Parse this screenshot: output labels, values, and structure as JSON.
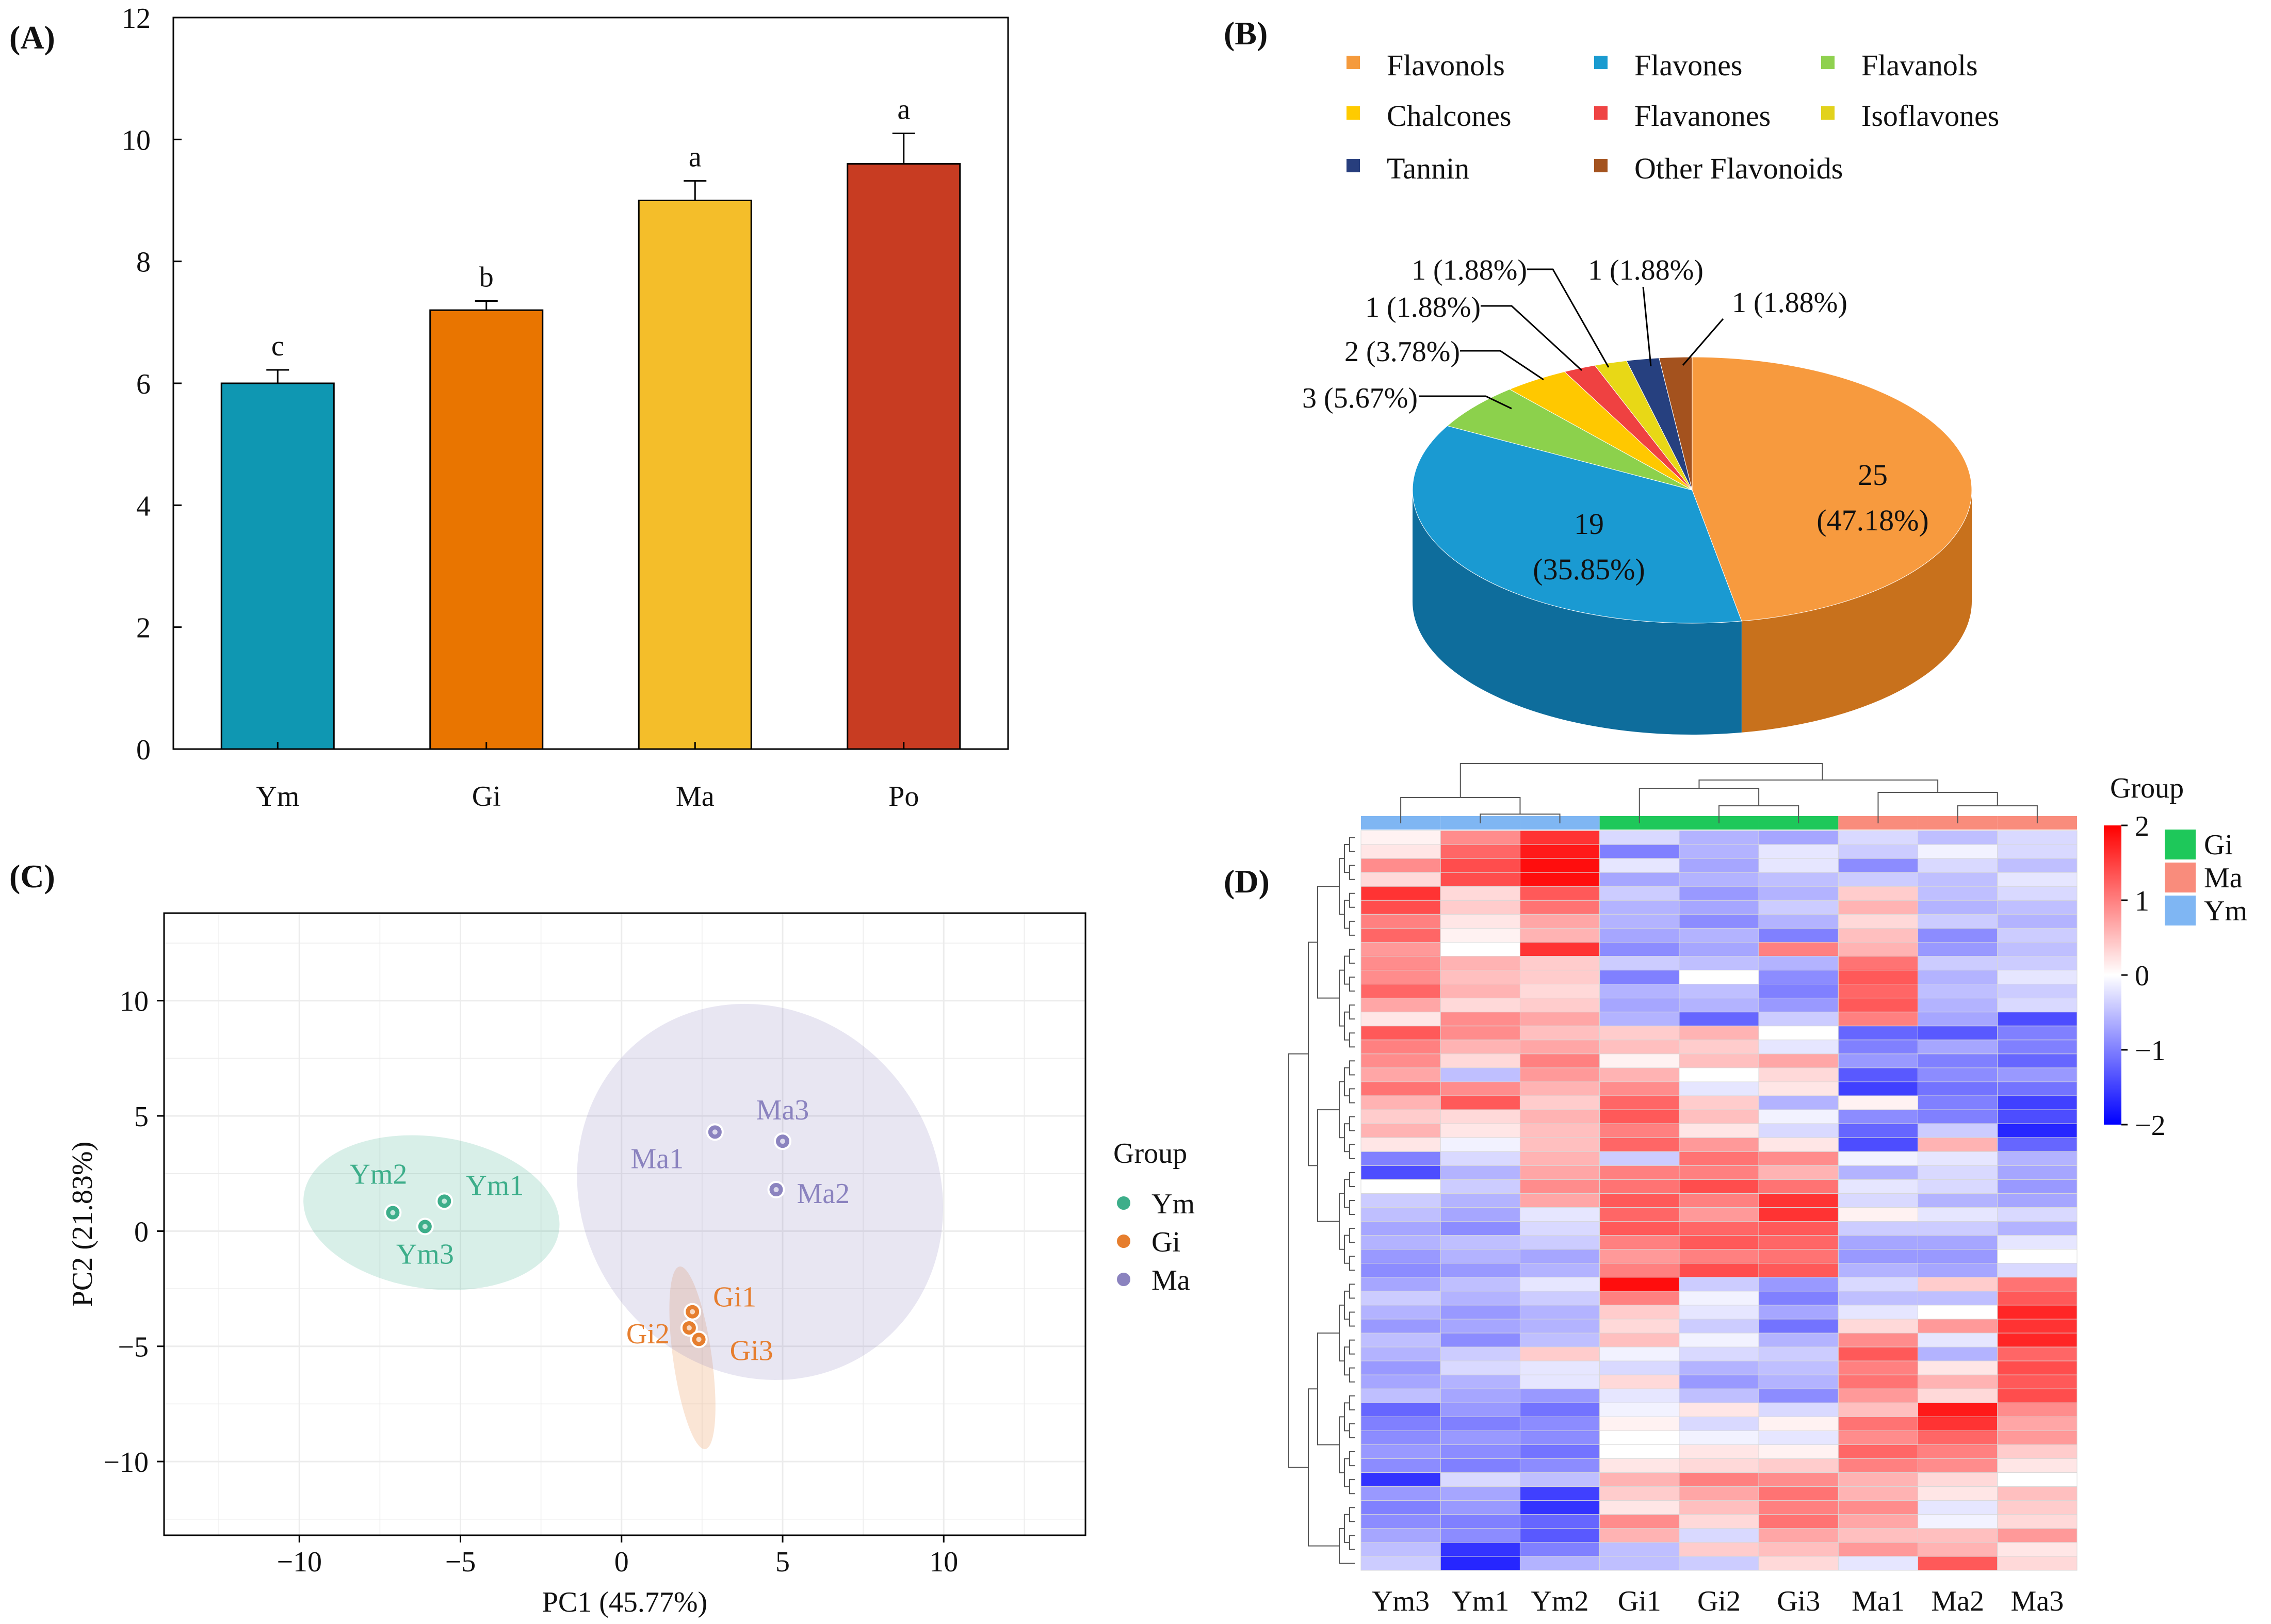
{
  "panels": {
    "a": "(A)",
    "b": "(B)",
    "c": "(C)",
    "d": "(D)"
  },
  "chart_data": [
    {
      "type": "bar",
      "panel": "A",
      "title": "",
      "xlabel": "",
      "ylabel": "",
      "categories": [
        "Ym",
        "Gi",
        "Ma",
        "Po"
      ],
      "values": [
        6.0,
        7.2,
        9.0,
        9.6
      ],
      "errors": [
        0.22,
        0.15,
        0.32,
        0.5
      ],
      "significance": [
        "c",
        "b",
        "a",
        "a"
      ],
      "colors": [
        "#0f97b2",
        "#e97500",
        "#f4be2a",
        "#c83c22"
      ],
      "ylim": [
        0,
        12
      ],
      "yticks": [
        0,
        2,
        4,
        6,
        8,
        10,
        12
      ]
    },
    {
      "type": "pie",
      "panel": "B",
      "style": "3d",
      "legend": [
        {
          "name": "Flavonols",
          "color": "#f59a3c"
        },
        {
          "name": "Flavones",
          "color": "#1a9bd0"
        },
        {
          "name": "Flavanols",
          "color": "#8fd14f"
        },
        {
          "name": "Chalcones",
          "color": "#ffcb00"
        },
        {
          "name": "Flavanones",
          "color": "#ef4444"
        },
        {
          "name": "Isoflavones",
          "color": "#e2d21c"
        },
        {
          "name": "Tannin",
          "color": "#273e7d"
        },
        {
          "name": "Other Flavonoids",
          "color": "#a4531f"
        }
      ],
      "slices": [
        {
          "name": "Flavonols",
          "value": 25,
          "line1": "25",
          "line2": "(47.18%)",
          "color": "#f79a3e",
          "side": "#c8711c"
        },
        {
          "name": "Flavones",
          "value": 19,
          "line1": "19",
          "line2": "(35.85%)",
          "color": "#1a9ad2",
          "side": "#0e6d9c"
        },
        {
          "name": "Flavanols",
          "value": 3,
          "label": "3 (5.67%)",
          "color": "#8cd14c",
          "side": "#5d9a2b"
        },
        {
          "name": "Chalcones",
          "value": 2,
          "label": "2 (3.78%)",
          "color": "#ffc800",
          "side": "#c59b00"
        },
        {
          "name": "Flavanones",
          "value": 1,
          "label": "1 (1.88%)",
          "color": "#ef4141",
          "side": "#b42a2a"
        },
        {
          "name": "Isoflavones",
          "value": 1,
          "label": "1 (1.88%)",
          "color": "#e8d816",
          "side": "#aea10e"
        },
        {
          "name": "Tannin",
          "value": 1,
          "label": "1 (1.88%)",
          "color": "#26407f",
          "side": "#172a59"
        },
        {
          "name": "Other Flavonoids",
          "value": 1,
          "label": "1 (1.88%)",
          "color": "#a4521e",
          "side": "#7a3a12"
        }
      ]
    },
    {
      "type": "scatter",
      "panel": "C",
      "xlabel": "PC1 (45.77%)",
      "ylabel": "PC2 (21.83%)",
      "xlim": [
        -14.2,
        14.4
      ],
      "ylim": [
        -13.2,
        13.8
      ],
      "xticks": [
        -10,
        -5,
        0,
        5,
        10
      ],
      "yticks": [
        -10,
        -5,
        0,
        5,
        10
      ],
      "tick_labels_x": [
        "−10",
        "−5",
        "0",
        "5",
        "10"
      ],
      "tick_labels_y": [
        "−10",
        "−5",
        "0",
        "5",
        "10"
      ],
      "legend_title": "Group",
      "groups": [
        {
          "name": "Ym",
          "color": "#3dae8a",
          "ellipse": {
            "cx": -5.9,
            "cy": 0.8,
            "rx": 4.0,
            "ry": 3.3,
            "angle": 8
          },
          "points": [
            {
              "label": "Ym1",
              "x": -5.5,
              "y": 1.3
            },
            {
              "label": "Ym2",
              "x": -7.1,
              "y": 0.8
            },
            {
              "label": "Ym3",
              "x": -6.1,
              "y": 0.2
            }
          ]
        },
        {
          "name": "Gi",
          "color": "#e67e2e",
          "ellipse": {
            "cx": 2.2,
            "cy": -5.5,
            "rx": 0.6,
            "ry": 4.0,
            "angle": -8
          },
          "points": [
            {
              "label": "Gi1",
              "x": 2.2,
              "y": -3.5
            },
            {
              "label": "Gi2",
              "x": 2.1,
              "y": -4.2
            },
            {
              "label": "Gi3",
              "x": 2.4,
              "y": -4.7
            }
          ]
        },
        {
          "name": "Ma",
          "color": "#8b83bf",
          "ellipse": {
            "cx": 4.3,
            "cy": 1.7,
            "rx": 5.5,
            "ry": 8.4,
            "angle": -36
          },
          "points": [
            {
              "label": "Ma1",
              "x": 2.9,
              "y": 4.3
            },
            {
              "label": "Ma2",
              "x": 4.8,
              "y": 1.8
            },
            {
              "label": "Ma3",
              "x": 5.0,
              "y": 3.9
            }
          ]
        }
      ]
    },
    {
      "type": "heatmap",
      "panel": "D",
      "columns": [
        "Ym3",
        "Ym1",
        "Ym2",
        "Gi1",
        "Gi2",
        "Gi3",
        "Ma1",
        "Ma2",
        "Ma3"
      ],
      "column_groups": [
        "Ym",
        "Ym",
        "Ym",
        "Gi",
        "Gi",
        "Gi",
        "Ma",
        "Ma",
        "Ma"
      ],
      "group_legend_title": "Group",
      "group_legend": [
        {
          "name": "Gi",
          "color": "#1ec85a"
        },
        {
          "name": "Ma",
          "color": "#f98c7c"
        },
        {
          "name": "Ym",
          "color": "#7fb6f3"
        }
      ],
      "color_scale": {
        "min": -2,
        "max": 2,
        "ticks": [
          2,
          1,
          0,
          -1,
          -2
        ],
        "tick_labels": [
          "2",
          "1",
          "0",
          "−1",
          "−2"
        ],
        "low": "#0000ff",
        "mid": "#ffffff",
        "high": "#ff0000"
      },
      "rows": 53,
      "values": [
        [
          0.1,
          0.9,
          1.6,
          -0.3,
          -0.6,
          -0.7,
          -0.3,
          -0.5,
          -0.3
        ],
        [
          0.2,
          1.2,
          1.8,
          -1.0,
          -0.6,
          -0.2,
          -0.4,
          -0.1,
          -0.3
        ],
        [
          0.9,
          1.4,
          1.9,
          -0.2,
          -0.7,
          -0.2,
          -0.9,
          -0.3,
          -0.5
        ],
        [
          0.3,
          1.4,
          1.9,
          -0.7,
          -0.6,
          -0.5,
          -0.4,
          -0.5,
          -0.2
        ],
        [
          1.6,
          0.3,
          1.3,
          -0.4,
          -0.8,
          -0.6,
          0.4,
          -0.5,
          -0.3
        ],
        [
          1.4,
          0.4,
          1.1,
          -0.6,
          -0.7,
          -0.4,
          0.6,
          -0.6,
          -0.5
        ],
        [
          1.0,
          0.2,
          0.7,
          -0.6,
          -0.9,
          -0.6,
          0.3,
          -0.4,
          -0.6
        ],
        [
          1.2,
          0.1,
          0.6,
          -0.7,
          -0.6,
          -1.0,
          0.5,
          -0.9,
          -0.4
        ],
        [
          0.8,
          0.0,
          1.6,
          -0.9,
          -0.7,
          1.0,
          0.6,
          -0.8,
          -0.5
        ],
        [
          0.9,
          0.6,
          0.4,
          -0.4,
          -0.5,
          -0.6,
          1.1,
          -0.4,
          -0.4
        ],
        [
          0.9,
          0.5,
          0.4,
          -1.0,
          0.0,
          -0.9,
          1.3,
          -0.6,
          -0.2
        ],
        [
          1.2,
          0.6,
          0.3,
          -0.6,
          -0.5,
          -1.0,
          1.2,
          -0.5,
          -0.4
        ],
        [
          0.7,
          0.3,
          0.4,
          -0.7,
          -0.6,
          -0.8,
          1.3,
          -0.6,
          -0.3
        ],
        [
          0.2,
          0.9,
          0.7,
          -0.6,
          -1.2,
          -0.4,
          1.0,
          -0.7,
          -1.4
        ],
        [
          1.3,
          0.9,
          0.5,
          0.4,
          0.6,
          0.0,
          -1.2,
          -1.3,
          -1.0
        ],
        [
          1.0,
          0.6,
          0.7,
          0.5,
          0.4,
          -0.2,
          -1.0,
          -0.7,
          -1.0
        ],
        [
          0.9,
          0.3,
          1.0,
          0.1,
          0.5,
          0.7,
          -0.8,
          -1.0,
          -1.2
        ],
        [
          0.7,
          -0.5,
          0.8,
          0.6,
          0.0,
          0.3,
          -1.3,
          -0.9,
          -0.8
        ],
        [
          1.1,
          0.9,
          0.6,
          0.9,
          -0.2,
          0.2,
          -1.5,
          -1.1,
          -1.1
        ],
        [
          0.6,
          1.3,
          0.4,
          1.2,
          0.4,
          -0.6,
          0.1,
          -1.0,
          -1.5
        ],
        [
          0.4,
          0.3,
          0.6,
          1.3,
          0.5,
          -0.1,
          -0.9,
          -1.0,
          -1.4
        ],
        [
          0.6,
          0.2,
          0.5,
          1.0,
          0.2,
          -0.3,
          -1.2,
          -0.4,
          -1.7
        ],
        [
          0.2,
          -0.1,
          0.5,
          1.2,
          0.8,
          0.2,
          -1.4,
          0.6,
          -1.2
        ],
        [
          -1.0,
          -0.3,
          0.6,
          -0.4,
          1.1,
          0.9,
          -0.1,
          -0.2,
          -0.6
        ],
        [
          -1.4,
          -0.6,
          0.7,
          1.0,
          1.0,
          0.6,
          -0.6,
          -0.3,
          -0.7
        ],
        [
          0.0,
          -0.4,
          0.9,
          1.1,
          1.4,
          1.1,
          -0.2,
          -0.3,
          -0.8
        ],
        [
          -0.4,
          -0.6,
          0.7,
          1.3,
          1.0,
          1.6,
          -0.3,
          -0.6,
          -0.7
        ],
        [
          -0.5,
          -0.7,
          -0.2,
          1.2,
          0.8,
          1.6,
          0.1,
          -0.2,
          -0.3
        ],
        [
          -0.7,
          -0.9,
          -0.3,
          1.3,
          1.2,
          1.3,
          -0.4,
          -0.4,
          -0.6
        ],
        [
          -0.6,
          -0.5,
          -0.4,
          1.0,
          1.3,
          1.2,
          -0.7,
          -0.7,
          -0.2
        ],
        [
          -0.8,
          -0.6,
          -0.7,
          0.8,
          1.0,
          1.1,
          -0.8,
          -0.8,
          0.0
        ],
        [
          -0.9,
          -0.8,
          -0.6,
          1.0,
          1.4,
          1.3,
          -0.6,
          -0.7,
          -0.3
        ],
        [
          -0.7,
          -0.5,
          -0.2,
          1.9,
          -0.4,
          -0.8,
          -0.3,
          0.4,
          1.1
        ],
        [
          -0.4,
          -0.6,
          -0.4,
          1.0,
          -0.1,
          -1.0,
          -0.5,
          -0.5,
          1.3
        ],
        [
          -0.6,
          -0.8,
          -0.6,
          0.4,
          -0.2,
          -0.7,
          -0.2,
          0.0,
          1.7
        ],
        [
          -0.8,
          -0.7,
          -0.6,
          0.3,
          -0.4,
          -1.1,
          0.3,
          0.8,
          1.6
        ],
        [
          -0.5,
          -0.9,
          -0.5,
          0.5,
          -0.1,
          -0.6,
          0.9,
          -0.2,
          1.7
        ],
        [
          -0.6,
          -0.4,
          0.4,
          -0.1,
          -0.3,
          -0.4,
          1.3,
          -0.6,
          1.2
        ],
        [
          -0.8,
          -0.3,
          -0.2,
          -0.3,
          -0.6,
          -0.5,
          1.0,
          0.2,
          1.4
        ],
        [
          -0.7,
          -0.6,
          -0.2,
          0.3,
          -0.8,
          -0.6,
          1.1,
          0.6,
          1.3
        ],
        [
          -0.5,
          -0.7,
          -0.8,
          -0.2,
          -0.5,
          -0.9,
          0.8,
          0.3,
          1.4
        ],
        [
          -1.2,
          -0.8,
          -1.1,
          -0.1,
          0.2,
          -0.3,
          0.5,
          1.8,
          0.9
        ],
        [
          -1.0,
          -1.0,
          -0.9,
          0.1,
          -0.3,
          0.1,
          1.1,
          1.6,
          0.7
        ],
        [
          -0.9,
          -0.8,
          -0.9,
          0.0,
          -0.1,
          -0.2,
          0.9,
          1.2,
          0.8
        ],
        [
          -0.8,
          -0.9,
          -1.1,
          0.0,
          0.2,
          0.1,
          1.2,
          1.0,
          0.4
        ],
        [
          -0.9,
          -1.0,
          -0.9,
          0.2,
          0.3,
          0.4,
          1.0,
          0.9,
          0.2
        ],
        [
          -1.6,
          -0.3,
          -0.5,
          0.6,
          1.0,
          0.9,
          0.6,
          0.3,
          0.0
        ],
        [
          -0.8,
          -0.7,
          -1.5,
          0.4,
          0.7,
          1.1,
          0.6,
          0.2,
          0.5
        ],
        [
          -1.0,
          -0.8,
          -1.6,
          0.2,
          0.5,
          1.0,
          0.9,
          -0.2,
          0.4
        ],
        [
          -0.9,
          -1.0,
          -1.2,
          0.9,
          0.3,
          1.1,
          0.7,
          -0.1,
          0.3
        ],
        [
          -0.7,
          -0.9,
          -1.3,
          0.6,
          -0.3,
          0.7,
          0.5,
          0.5,
          0.8
        ],
        [
          -0.5,
          -1.6,
          -1.0,
          -0.5,
          0.4,
          0.5,
          0.8,
          0.6,
          0.2
        ],
        [
          -0.4,
          -1.7,
          -0.6,
          -0.5,
          -0.4,
          0.3,
          -0.2,
          1.3,
          0.3
        ]
      ]
    }
  ]
}
